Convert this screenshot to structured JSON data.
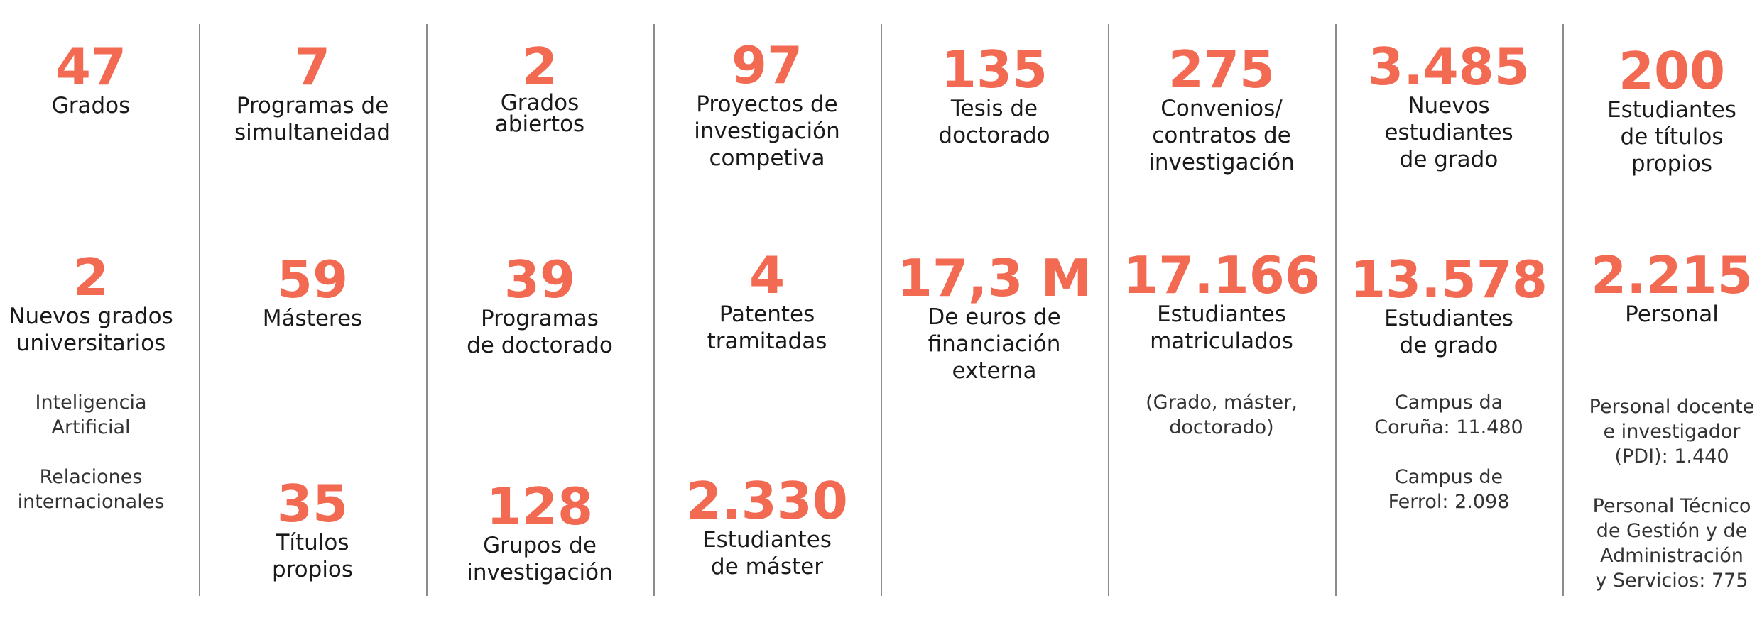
{
  "columns": [
    {
      "top": {
        "value": "47",
        "label": [
          "Grados"
        ]
      },
      "mid": {
        "value": "2",
        "label": [
          "Nuevos grados",
          "universitarios"
        ]
      },
      "notes": [
        [
          "Inteligencia",
          "Artificial"
        ],
        [
          "Relaciones",
          "internacionales"
        ]
      ]
    },
    {
      "top": {
        "value": "7",
        "label": [
          "Programas de",
          "simultaneidad"
        ]
      },
      "mid": {
        "value": "59",
        "label": [
          "Másteres"
        ]
      },
      "bottom": {
        "value": "35",
        "label": [
          "Títulos",
          "propios"
        ]
      }
    },
    {
      "top": {
        "value": "2",
        "label": [
          "Grados",
          "abiertos"
        ]
      },
      "mid": {
        "value": "39",
        "label": [
          "Programas",
          "de doctorado"
        ]
      },
      "bottom": {
        "value": "128",
        "label": [
          "Grupos de",
          "investigación"
        ]
      }
    },
    {
      "top": {
        "value": "97",
        "label": [
          "Proyectos de",
          "investigación",
          "competiva"
        ]
      },
      "mid": {
        "value": "4",
        "label": [
          "Patentes",
          "tramitadas"
        ]
      },
      "bottom": {
        "value": "2.330",
        "label": [
          "Estudiantes",
          "de máster"
        ]
      }
    },
    {
      "top": {
        "value": "135",
        "label": [
          "Tesis de",
          "doctorado"
        ]
      },
      "mid": {
        "value": "17,3 M",
        "label": [
          "De euros de",
          "financiación",
          "externa"
        ]
      }
    },
    {
      "top": {
        "value": "275",
        "label": [
          "Convenios/",
          "contratos de",
          "investigación"
        ]
      },
      "mid": {
        "value": "17.166",
        "label": [
          "Estudiantes",
          "matriculados"
        ]
      },
      "notes": [
        [
          "(Grado, máster,",
          "doctorado)"
        ]
      ]
    },
    {
      "top": {
        "value": "3.485",
        "label": [
          "Nuevos",
          "estudiantes",
          "de grado"
        ]
      },
      "mid": {
        "value": "13.578",
        "label": [
          "Estudiantes",
          "de grado"
        ]
      },
      "notes": [
        [
          "Campus da",
          "Coruña: 11.480"
        ],
        [
          "Campus de",
          "Ferrol: 2.098"
        ]
      ]
    },
    {
      "top": {
        "value": "200",
        "label": [
          "Estudiantes",
          "de títulos",
          "propios"
        ]
      },
      "mid": {
        "value": "2.215",
        "label": [
          "Personal"
        ]
      },
      "notes": [
        [
          "Personal docente",
          "e investigador",
          "(PDI): 1.440"
        ],
        [
          "Personal Técnico",
          "de Gestión y de",
          "Administración",
          "y Servicios: 775"
        ]
      ]
    }
  ],
  "colors": {
    "accent": "#f26a52",
    "text": "#1a1a1a",
    "divider": "#8c8c8c"
  }
}
